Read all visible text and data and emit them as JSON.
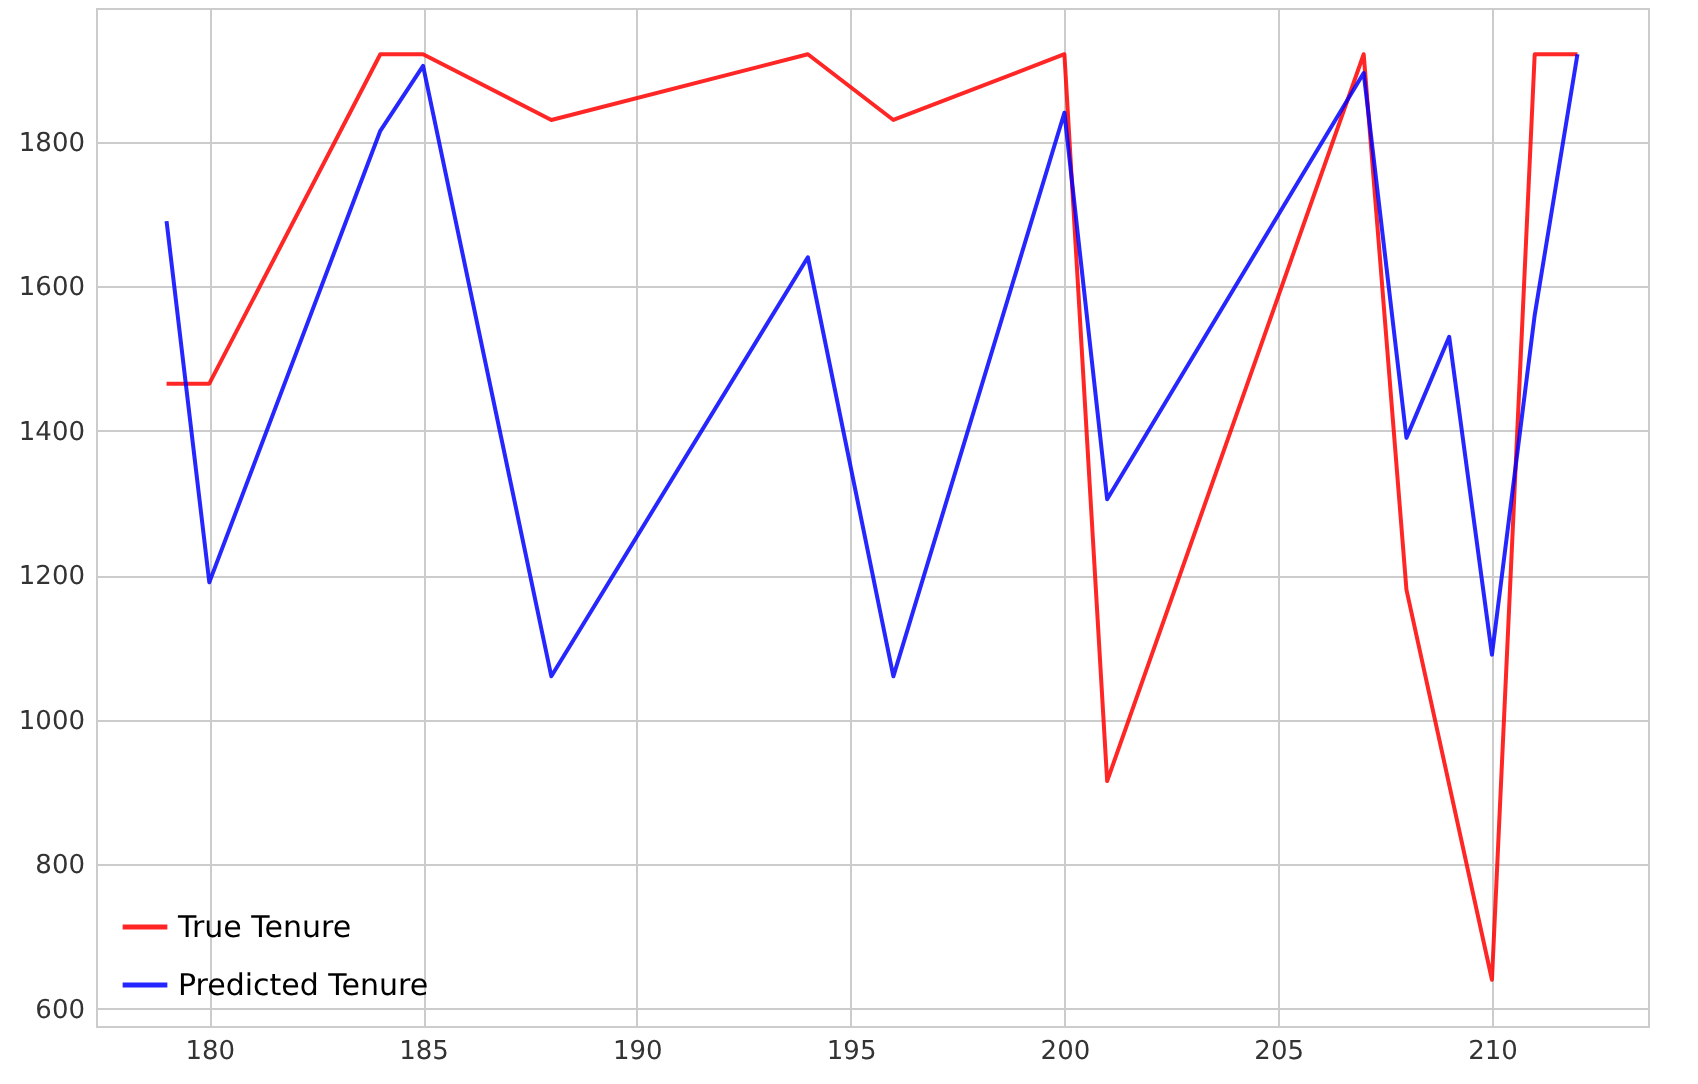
{
  "chart_data": {
    "type": "line",
    "xlim": [
      177.35,
      213.65
    ],
    "ylim": [
      576,
      1985
    ],
    "xticks": [
      180,
      185,
      190,
      195,
      200,
      205,
      210
    ],
    "yticks": [
      600,
      800,
      1000,
      1200,
      1400,
      1600,
      1800
    ],
    "grid": true,
    "legend": "bottom left",
    "marker": "none",
    "line_style": "solid",
    "series": [
      {
        "name": "True Tenure",
        "color": "#ff0000",
        "x": [
          179,
          180,
          184,
          185,
          188,
          194,
          196,
          200,
          201,
          207,
          208,
          210,
          211,
          212
        ],
        "values": [
          1465,
          1465,
          1921,
          1921,
          1830,
          1921,
          1830,
          1921,
          915,
          1921,
          1180,
          640,
          1921,
          1921
        ]
      },
      {
        "name": "Predicted Tenure",
        "color": "#0000ff",
        "x": [
          179,
          180,
          184,
          185,
          188,
          194,
          196,
          200,
          201,
          207,
          208,
          209,
          210,
          211,
          212
        ],
        "values": [
          1690,
          1190,
          1815,
          1905,
          1060,
          1640,
          1060,
          1840,
          1305,
          1895,
          1390,
          1530,
          1090,
          1560,
          1921
        ]
      }
    ]
  }
}
